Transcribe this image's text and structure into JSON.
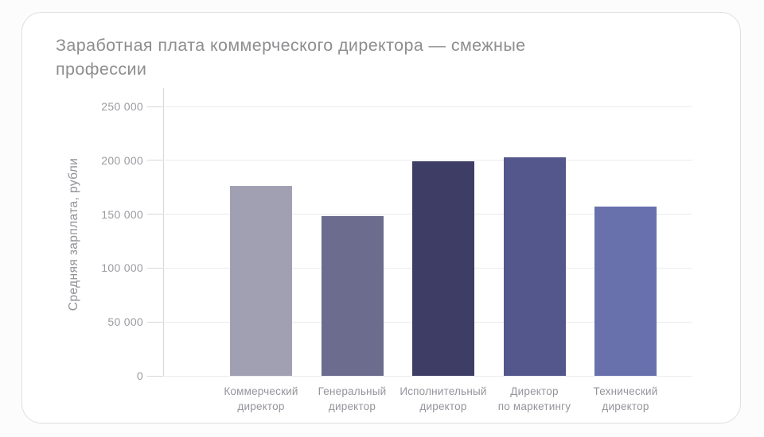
{
  "chart_data": {
    "type": "bar",
    "title": "Заработная плата коммерческого директора — смежные профессии",
    "ylabel": "Средняя зарплата, рубли",
    "xlabel": "",
    "categories": [
      "Коммерческий директор",
      "Генеральный директор",
      "Исполнительный директор",
      "Директор по маркетингу",
      "Технический директор"
    ],
    "category_label_lines": [
      [
        "Коммерческий",
        "директор"
      ],
      [
        "Генеральный",
        "директор"
      ],
      [
        "Исполнительный",
        "директор"
      ],
      [
        "Директор",
        "по маркетингу"
      ],
      [
        "Технический",
        "директор"
      ]
    ],
    "values": [
      176000,
      148000,
      199000,
      203000,
      157000
    ],
    "bar_colors": [
      "#a1a0b3",
      "#6b6c8e",
      "#3e3d66",
      "#53578b",
      "#6971ad"
    ],
    "ylim": [
      0,
      250000
    ],
    "yticks": [
      0,
      50000,
      100000,
      150000,
      200000,
      250000
    ],
    "ytick_labels": [
      "0",
      "50 000",
      "100 000",
      "150 000",
      "200 000",
      "250 000"
    ],
    "grid": "horizontal",
    "legend_position": "none"
  },
  "colors": {
    "card_background": "#ffffff",
    "card_border": "#dfdfe3",
    "grid_line": "#ebebef",
    "axis_line": "#d7d7dc",
    "title_text": "#8e8e90",
    "tick_text": "#9b9ba1",
    "category_text": "#94949b"
  }
}
